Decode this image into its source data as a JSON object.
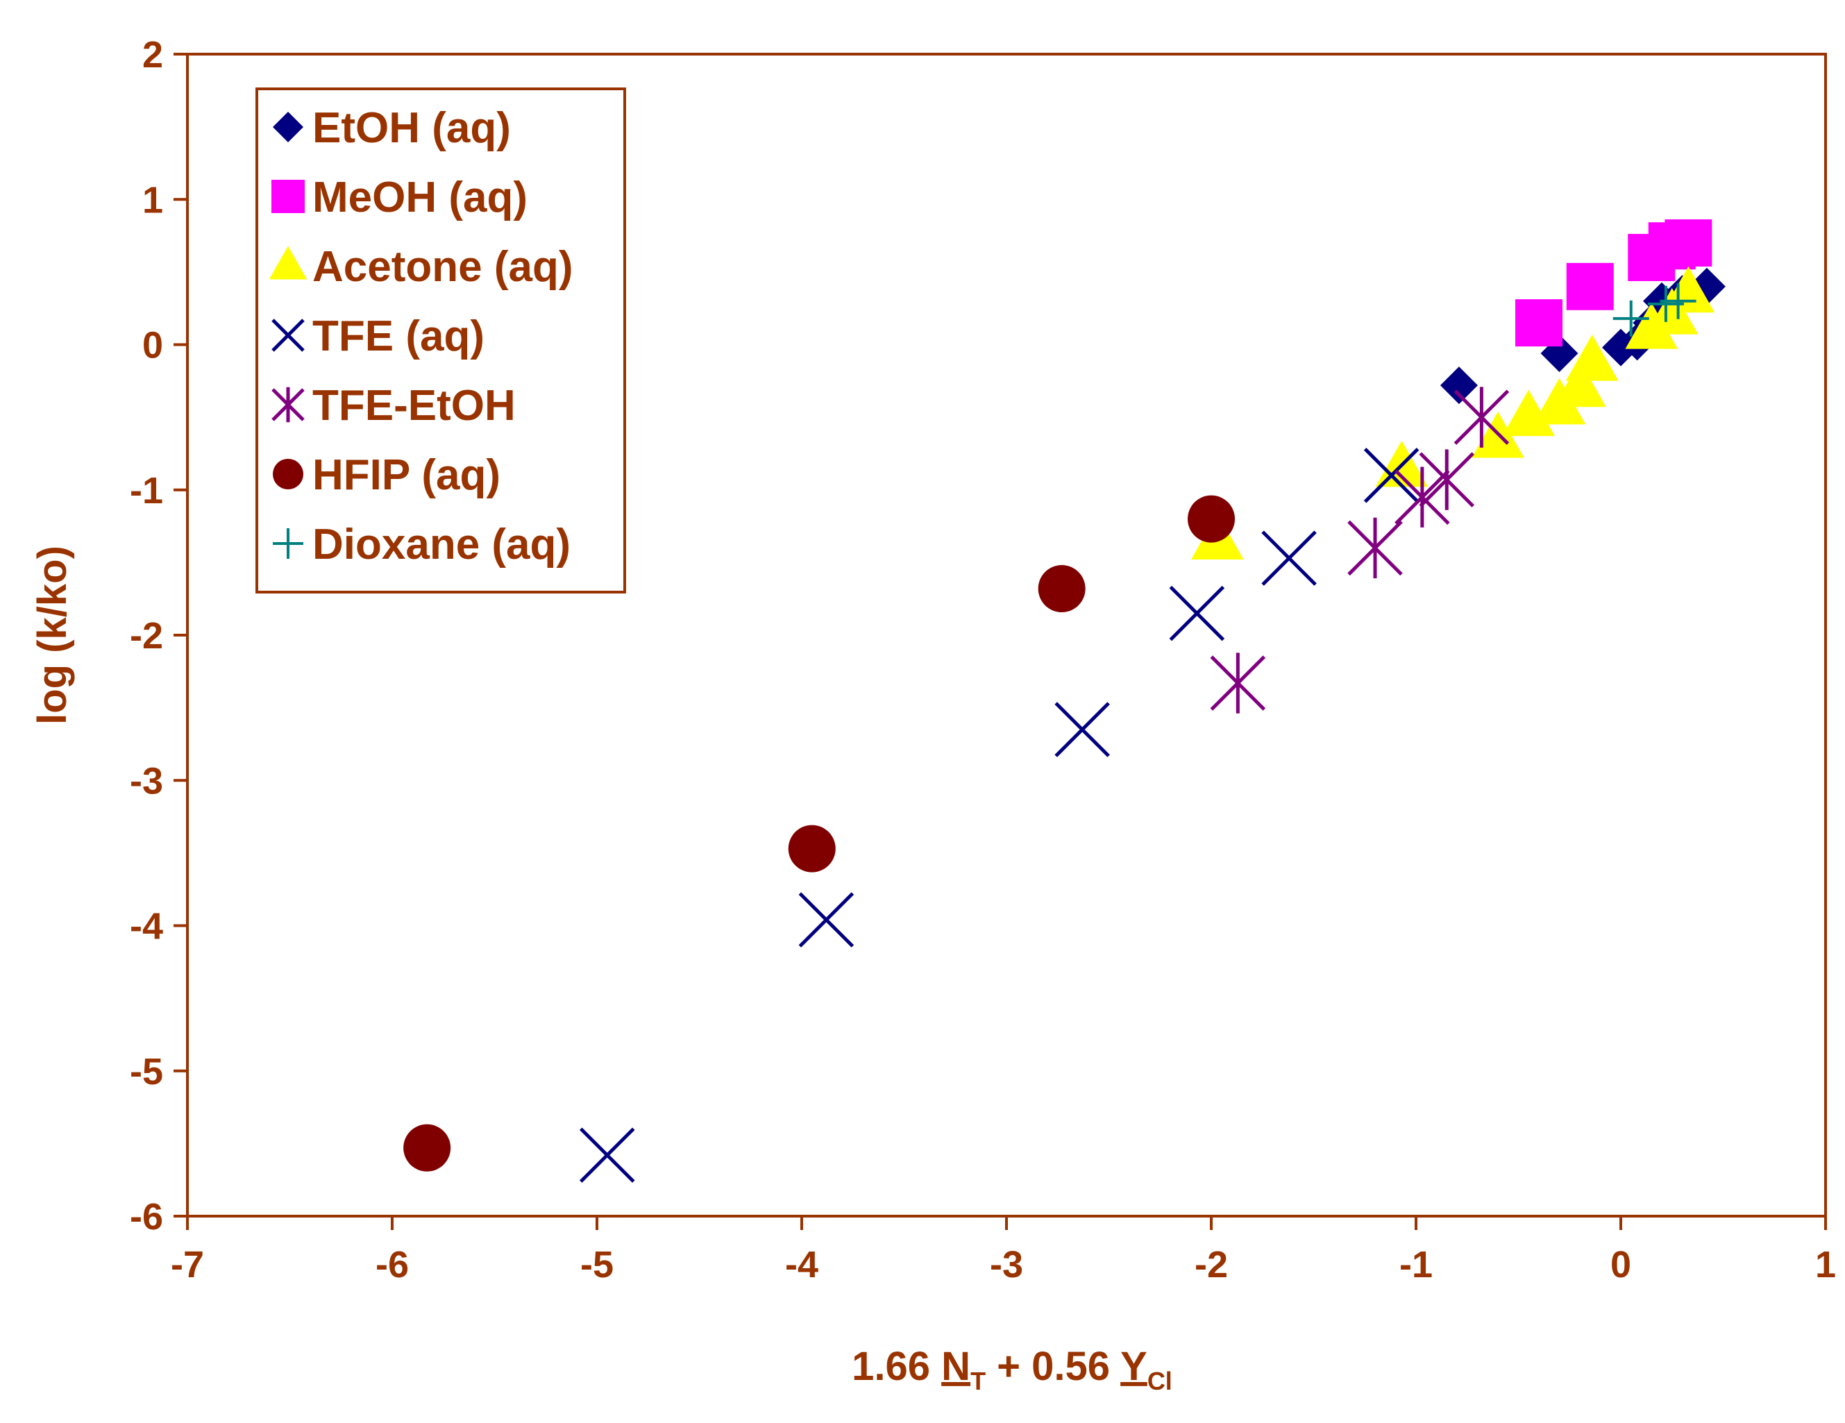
{
  "chart_data": {
    "type": "scatter",
    "title": "",
    "xlabel": {
      "parts": [
        {
          "text": "1.66 ",
          "style": "normal"
        },
        {
          "text": "N",
          "style": "underline"
        },
        {
          "text": "T",
          "style": "sub"
        },
        {
          "text": " + 0.56 ",
          "style": "normal"
        },
        {
          "text": "Y",
          "style": "underline"
        },
        {
          "text": "Cl",
          "style": "sub"
        }
      ]
    },
    "ylabel": "log (k/ko)",
    "xlim": [
      -7,
      1
    ],
    "ylim": [
      -6,
      2
    ],
    "xticks": [
      "-7",
      "-6",
      "-5",
      "-4",
      "-3",
      "-2",
      "-1",
      "0",
      "1"
    ],
    "yticks": [
      "2",
      "1",
      "0",
      "-1",
      "-2",
      "-3",
      "-4",
      "-5",
      "-6"
    ],
    "legend_position": "top-left",
    "colors": {
      "axis": "#993300",
      "text": "#993300"
    },
    "series": [
      {
        "name": "EtOH (aq)",
        "marker": "diamond",
        "color": "#000080",
        "points": [
          [
            -0.79,
            -0.28
          ],
          [
            -0.3,
            -0.06
          ],
          [
            0.0,
            -0.02
          ],
          [
            0.08,
            0.02
          ],
          [
            0.15,
            0.15
          ],
          [
            0.2,
            0.3
          ],
          [
            0.3,
            0.35
          ],
          [
            0.42,
            0.4
          ]
        ]
      },
      {
        "name": "MeOH (aq)",
        "marker": "square",
        "color": "#ff00ff",
        "points": [
          [
            -0.4,
            0.15
          ],
          [
            -0.15,
            0.4
          ],
          [
            0.15,
            0.6
          ],
          [
            0.25,
            0.68
          ],
          [
            0.33,
            0.7
          ]
        ]
      },
      {
        "name": "Acetone (aq)",
        "marker": "triangle",
        "color": "#ffff00",
        "points": [
          [
            -1.97,
            -1.35
          ],
          [
            -1.07,
            -0.85
          ],
          [
            -0.6,
            -0.65
          ],
          [
            -0.45,
            -0.5
          ],
          [
            -0.3,
            -0.42
          ],
          [
            -0.2,
            -0.3
          ],
          [
            -0.14,
            -0.12
          ],
          [
            0.15,
            0.1
          ],
          [
            0.25,
            0.2
          ],
          [
            0.33,
            0.35
          ]
        ]
      },
      {
        "name": "TFE (aq)",
        "marker": "x",
        "color": "#000080",
        "points": [
          [
            -4.95,
            -5.58
          ],
          [
            -3.88,
            -3.96
          ],
          [
            -2.63,
            -2.65
          ],
          [
            -2.07,
            -1.85
          ],
          [
            -1.62,
            -1.47
          ],
          [
            -1.12,
            -0.9
          ]
        ]
      },
      {
        "name": "TFE-EtOH",
        "marker": "star",
        "color": "#800080",
        "points": [
          [
            -1.87,
            -2.33
          ],
          [
            -1.2,
            -1.4
          ],
          [
            -0.97,
            -1.05
          ],
          [
            -0.85,
            -0.93
          ],
          [
            -0.68,
            -0.5
          ]
        ]
      },
      {
        "name": "HFIP (aq)",
        "marker": "circle",
        "color": "#800000",
        "points": [
          [
            -5.83,
            -5.53
          ],
          [
            -3.95,
            -3.47
          ],
          [
            -2.73,
            -1.68
          ],
          [
            -2.0,
            -1.2
          ]
        ]
      },
      {
        "name": "Dioxane (aq)",
        "marker": "plus",
        "color": "#008080",
        "points": [
          [
            0.05,
            0.18
          ],
          [
            0.22,
            0.28
          ],
          [
            0.28,
            0.3
          ]
        ]
      }
    ]
  }
}
